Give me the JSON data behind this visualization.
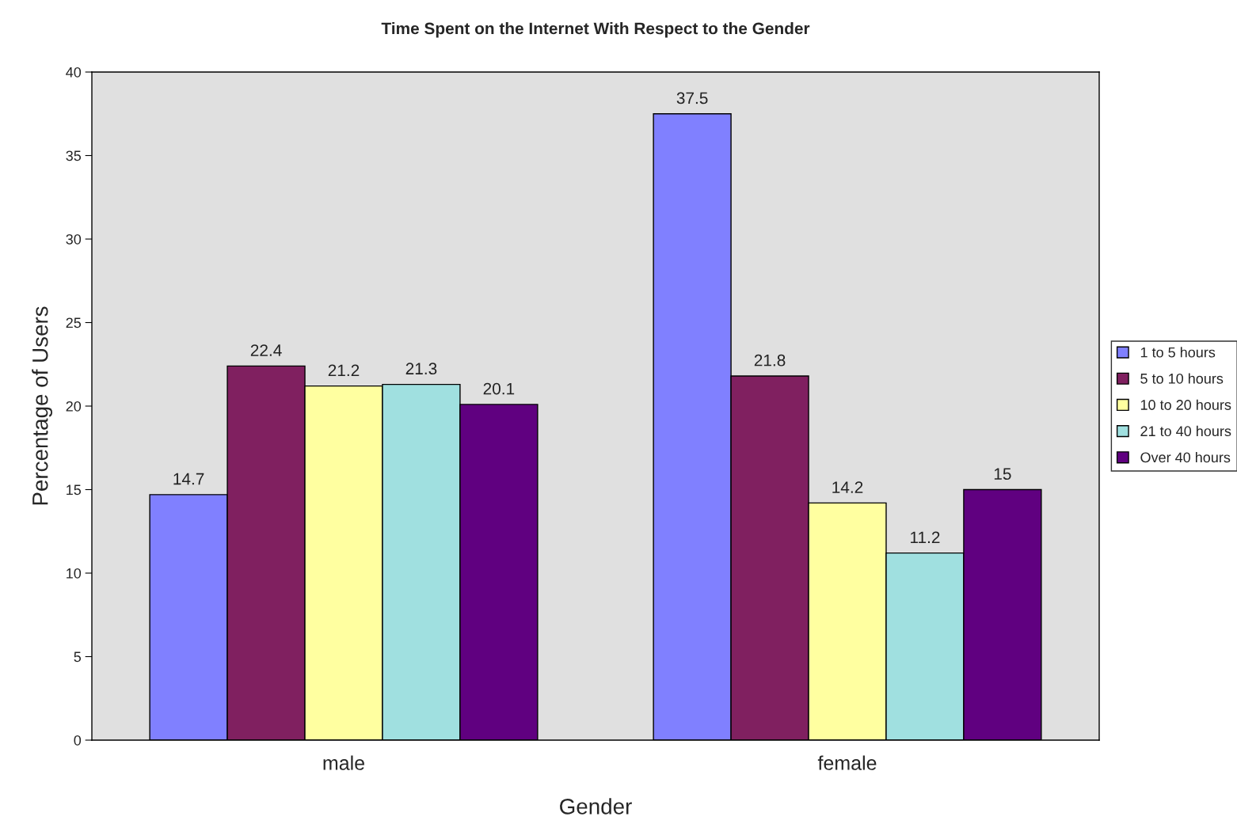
{
  "chart_data": {
    "type": "bar",
    "title": "Time Spent on the Internet With Respect to the Gender",
    "xlabel": "Gender",
    "ylabel": "Percentage of Users",
    "categories": [
      "male",
      "female"
    ],
    "series": [
      {
        "name": "1 to 5 hours",
        "color": "#8080ff",
        "values": [
          14.7,
          37.5
        ]
      },
      {
        "name": "5 to 10 hours",
        "color": "#802060",
        "values": [
          22.4,
          21.8
        ]
      },
      {
        "name": "10 to 20 hours",
        "color": "#ffffa0",
        "values": [
          21.2,
          14.2
        ]
      },
      {
        "name": "21 to 40 hours",
        "color": "#a0e0e0",
        "values": [
          21.3,
          11.2
        ]
      },
      {
        "name": "Over 40 hours",
        "color": "#600080",
        "values": [
          20.1,
          15
        ]
      }
    ],
    "ylim": [
      0,
      40
    ],
    "yticks": [
      0,
      5,
      10,
      15,
      20,
      25,
      30,
      35,
      40
    ],
    "grid": false,
    "legend": "right",
    "data_labels": true
  }
}
